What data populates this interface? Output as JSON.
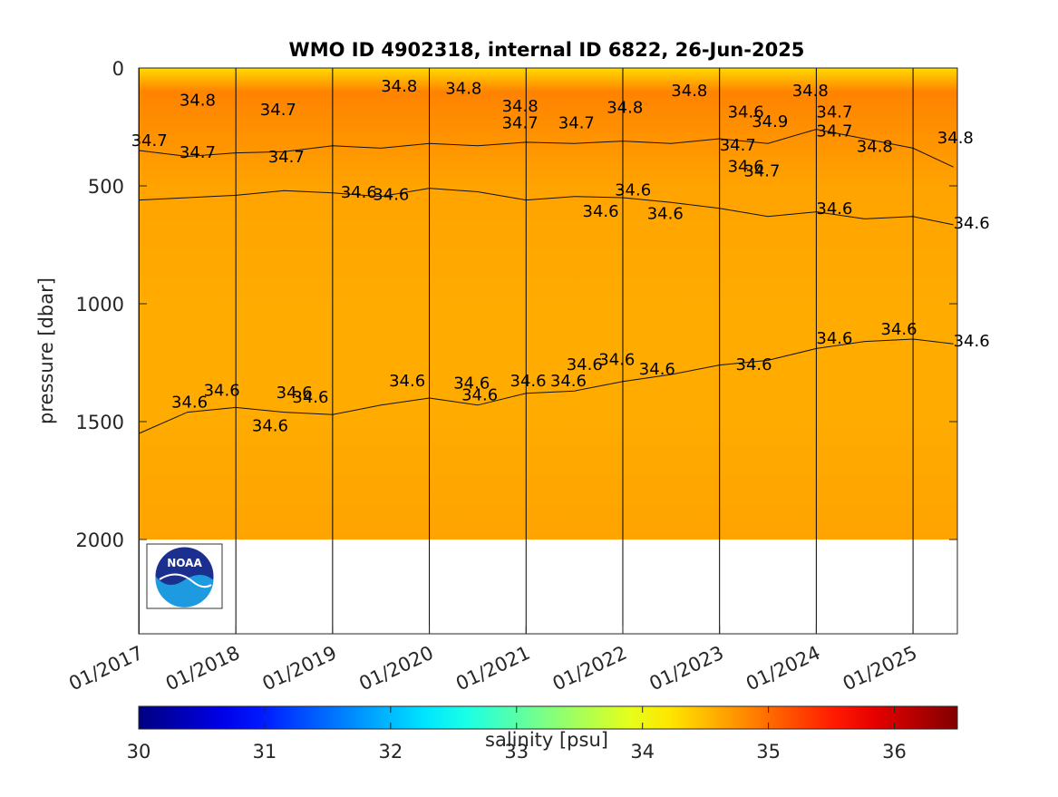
{
  "chart_data": {
    "type": "heatmap",
    "title": "WMO ID 4902318, internal ID 6822, 26-Jun-2025",
    "ylabel": "pressure [dbar]",
    "xlabel": "",
    "ylim": [
      2400,
      0
    ],
    "y_reversed": true,
    "y_ticks": [
      0,
      500,
      1000,
      1500,
      2000
    ],
    "x_range": [
      "2017-01",
      "2025-06"
    ],
    "x_ticks": [
      "01/2017",
      "01/2018",
      "01/2019",
      "01/2020",
      "01/2021",
      "01/2022",
      "01/2023",
      "01/2024",
      "01/2025"
    ],
    "colorbar": {
      "label": "salinity [psu]",
      "range": [
        30,
        36.5
      ],
      "ticks": [
        30,
        31,
        32,
        33,
        34,
        35,
        36
      ],
      "colormap": "jet"
    },
    "profile_max_pressure": 2000,
    "field_salinity": [
      {
        "pressure": 0,
        "salinity": 34.3
      },
      {
        "pressure": 100,
        "salinity": 34.85
      },
      {
        "pressure": 300,
        "salinity": 34.75
      },
      {
        "pressure": 500,
        "salinity": 34.65
      },
      {
        "pressure": 1000,
        "salinity": 34.6
      },
      {
        "pressure": 1500,
        "salinity": 34.6
      },
      {
        "pressure": 2000,
        "salinity": 34.65
      }
    ],
    "contours": [
      {
        "level": "34.7",
        "points": [
          [
            "2017-01",
            350
          ],
          [
            "2017-07",
            375
          ],
          [
            "2018-01",
            360
          ],
          [
            "2018-07",
            355
          ],
          [
            "2019-01",
            330
          ],
          [
            "2019-07",
            340
          ],
          [
            "2020-01",
            320
          ],
          [
            "2020-07",
            330
          ],
          [
            "2021-01",
            315
          ],
          [
            "2021-07",
            320
          ],
          [
            "2022-01",
            310
          ],
          [
            "2022-07",
            320
          ],
          [
            "2023-01",
            300
          ],
          [
            "2023-07",
            320
          ],
          [
            "2024-01",
            260
          ],
          [
            "2024-07",
            300
          ],
          [
            "2025-01",
            340
          ],
          [
            "2025-06",
            420
          ]
        ]
      },
      {
        "level": "34.6",
        "points": [
          [
            "2017-01",
            560
          ],
          [
            "2017-07",
            550
          ],
          [
            "2018-01",
            540
          ],
          [
            "2018-07",
            520
          ],
          [
            "2019-01",
            530
          ],
          [
            "2019-07",
            545
          ],
          [
            "2020-01",
            510
          ],
          [
            "2020-07",
            525
          ],
          [
            "2021-01",
            560
          ],
          [
            "2021-07",
            545
          ],
          [
            "2022-01",
            550
          ],
          [
            "2022-07",
            570
          ],
          [
            "2023-01",
            595
          ],
          [
            "2023-07",
            630
          ],
          [
            "2024-01",
            610
          ],
          [
            "2024-07",
            640
          ],
          [
            "2025-01",
            630
          ],
          [
            "2025-06",
            665
          ]
        ]
      },
      {
        "level": "34.6",
        "points": [
          [
            "2017-01",
            1550
          ],
          [
            "2017-07",
            1460
          ],
          [
            "2018-01",
            1440
          ],
          [
            "2018-07",
            1460
          ],
          [
            "2019-01",
            1470
          ],
          [
            "2019-07",
            1430
          ],
          [
            "2020-01",
            1400
          ],
          [
            "2020-07",
            1430
          ],
          [
            "2021-01",
            1380
          ],
          [
            "2021-07",
            1370
          ],
          [
            "2022-01",
            1330
          ],
          [
            "2022-07",
            1300
          ],
          [
            "2023-01",
            1260
          ],
          [
            "2023-07",
            1240
          ],
          [
            "2024-01",
            1190
          ],
          [
            "2024-07",
            1160
          ],
          [
            "2025-01",
            1150
          ],
          [
            "2025-06",
            1170
          ]
        ]
      }
    ],
    "contour_labels": [
      {
        "text": "34.8",
        "x": "2017-06",
        "y": 160
      },
      {
        "text": "34.7",
        "x": "2018-04",
        "y": 200
      },
      {
        "text": "34.7",
        "x": "2016-12",
        "y": 330
      },
      {
        "text": "34.7",
        "x": "2017-06",
        "y": 380
      },
      {
        "text": "34.7",
        "x": "2018-05",
        "y": 400
      },
      {
        "text": "34.8",
        "x": "2019-07",
        "y": 100
      },
      {
        "text": "34.8",
        "x": "2020-03",
        "y": 110
      },
      {
        "text": "34.8",
        "x": "2020-10",
        "y": 185
      },
      {
        "text": "34.7",
        "x": "2020-10",
        "y": 255
      },
      {
        "text": "34.7",
        "x": "2021-05",
        "y": 255
      },
      {
        "text": "34.8",
        "x": "2021-11",
        "y": 190
      },
      {
        "text": "34.8",
        "x": "2022-07",
        "y": 120
      },
      {
        "text": "34.6",
        "x": "2023-02",
        "y": 210
      },
      {
        "text": "34.9",
        "x": "2023-05",
        "y": 250
      },
      {
        "text": "34.7",
        "x": "2023-01",
        "y": 350
      },
      {
        "text": "34.6",
        "x": "2023-02",
        "y": 440
      },
      {
        "text": "34.7",
        "x": "2023-04",
        "y": 460
      },
      {
        "text": "34.7",
        "x": "2024-01",
        "y": 210
      },
      {
        "text": "34.7",
        "x": "2024-01",
        "y": 290
      },
      {
        "text": "34.8",
        "x": "2024-06",
        "y": 355
      },
      {
        "text": "34.8",
        "x": "2023-10",
        "y": 120
      },
      {
        "text": "34.8",
        "x": "2025-04",
        "y": 320
      },
      {
        "text": "34.6",
        "x": "2019-02",
        "y": 550
      },
      {
        "text": "34.6",
        "x": "2019-06",
        "y": 560
      },
      {
        "text": "34.6",
        "x": "2021-08",
        "y": 630
      },
      {
        "text": "34.6",
        "x": "2021-12",
        "y": 540
      },
      {
        "text": "34.6",
        "x": "2022-04",
        "y": 640
      },
      {
        "text": "34.6",
        "x": "2024-01",
        "y": 620
      },
      {
        "text": "34.6",
        "x": "2025-06",
        "y": 680
      },
      {
        "text": "34.6",
        "x": "2017-05",
        "y": 1440
      },
      {
        "text": "34.6",
        "x": "2017-09",
        "y": 1390
      },
      {
        "text": "34.6",
        "x": "2018-06",
        "y": 1400
      },
      {
        "text": "34.6",
        "x": "2018-08",
        "y": 1420
      },
      {
        "text": "34.6",
        "x": "2018-03",
        "y": 1540
      },
      {
        "text": "34.6",
        "x": "2019-08",
        "y": 1350
      },
      {
        "text": "34.6",
        "x": "2020-05",
        "y": 1410
      },
      {
        "text": "34.6",
        "x": "2020-04",
        "y": 1360
      },
      {
        "text": "34.6",
        "x": "2020-11",
        "y": 1350
      },
      {
        "text": "34.6",
        "x": "2021-04",
        "y": 1350
      },
      {
        "text": "34.6",
        "x": "2021-06",
        "y": 1280
      },
      {
        "text": "34.6",
        "x": "2021-10",
        "y": 1260
      },
      {
        "text": "34.6",
        "x": "2022-03",
        "y": 1300
      },
      {
        "text": "34.6",
        "x": "2023-03",
        "y": 1280
      },
      {
        "text": "34.6",
        "x": "2024-01",
        "y": 1170
      },
      {
        "text": "34.6",
        "x": "2024-09",
        "y": 1130
      },
      {
        "text": "34.6",
        "x": "2025-06",
        "y": 1180
      }
    ],
    "logo": "NOAA"
  }
}
